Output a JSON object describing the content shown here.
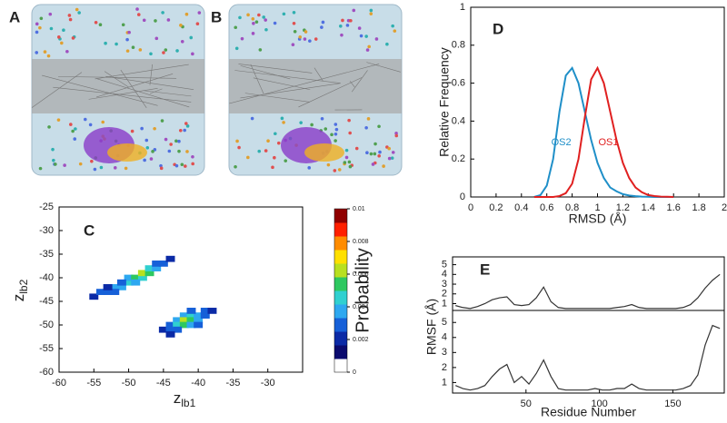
{
  "images": [
    {
      "label": "A"
    },
    {
      "label": "B"
    }
  ],
  "chart_data": [
    {
      "type": "line",
      "label": "D",
      "x_label": "RMSD (Å)",
      "y_label": "Relative Frequency",
      "xlim": [
        0,
        2
      ],
      "xticks": [
        0,
        0.2,
        0.4,
        0.6,
        0.8,
        1,
        1.2,
        1.4,
        1.6,
        1.8,
        2
      ],
      "ylim": [
        0,
        1
      ],
      "yticks": [
        0,
        0.2,
        0.4,
        0.6,
        0.8,
        1
      ],
      "x": [
        0.5,
        0.55,
        0.6,
        0.65,
        0.7,
        0.75,
        0.8,
        0.85,
        0.9,
        0.95,
        1.0,
        1.05,
        1.1,
        1.15,
        1.2,
        1.25,
        1.3,
        1.35,
        1.4,
        1.45,
        1.5,
        1.55,
        1.6
      ],
      "series": [
        {
          "name": "OS2",
          "color": "#1f8fc8",
          "values": [
            0,
            0.01,
            0.06,
            0.2,
            0.45,
            0.64,
            0.68,
            0.6,
            0.45,
            0.3,
            0.18,
            0.1,
            0.05,
            0.03,
            0.015,
            0.008,
            0.004,
            0.002,
            0.001,
            0,
            0,
            0,
            0
          ]
        },
        {
          "name": "OS1",
          "color": "#e02020",
          "values": [
            0,
            0,
            0,
            0,
            0.005,
            0.02,
            0.07,
            0.2,
            0.42,
            0.62,
            0.68,
            0.6,
            0.45,
            0.3,
            0.18,
            0.1,
            0.05,
            0.025,
            0.01,
            0.005,
            0.002,
            0.001,
            0
          ]
        }
      ]
    },
    {
      "type": "heatmap",
      "label": "C",
      "x_label": "z",
      "x_label_sub": "lb1",
      "y_label": "z",
      "y_label_sub": "lb2",
      "xlim": [
        -60,
        -25
      ],
      "xticks": [
        -60,
        -55,
        -50,
        -45,
        -40,
        -35,
        -30
      ],
      "ylim": [
        -60,
        -25
      ],
      "yticks": [
        -25,
        -30,
        -35,
        -40,
        -45,
        -50,
        -55,
        -60
      ],
      "x": [
        -55,
        -54,
        -53,
        -52,
        -51,
        -50,
        -50,
        -49,
        -48,
        -48,
        -47,
        -47,
        -46,
        -45,
        -44,
        -52,
        -49,
        -46,
        -51,
        -53,
        -45,
        -44,
        -44,
        -43,
        -43,
        -42,
        -42,
        -42,
        -41,
        -41,
        -41,
        -40,
        -40,
        -39,
        -39,
        -38,
        -43,
        -40,
        -44,
        -41
      ],
      "y": [
        -44,
        -43,
        -43,
        -42,
        -42,
        -41,
        -40,
        -40,
        -40,
        -39,
        -39,
        -38,
        -38,
        -37,
        -36,
        -43,
        -41,
        -37,
        -41,
        -42,
        -51,
        -50,
        -51,
        -49,
        -50,
        -48,
        -49,
        -50,
        -48,
        -49,
        -50,
        -48,
        -49,
        -47,
        -48,
        -47,
        -51,
        -50,
        -52,
        -47
      ],
      "values": [
        0.001,
        0.002,
        0.002,
        0.003,
        0.003,
        0.004,
        0.003,
        0.005,
        0.004,
        0.006,
        0.005,
        0.004,
        0.003,
        0.002,
        0.001,
        0.002,
        0.003,
        0.002,
        0.002,
        0.001,
        0.001,
        0.002,
        0.002,
        0.003,
        0.004,
        0.003,
        0.006,
        0.005,
        0.004,
        0.005,
        0.003,
        0.003,
        0.003,
        0.002,
        0.002,
        0.001,
        0.002,
        0.002,
        0.001,
        0.002
      ],
      "colorbar": {
        "label": "Probability",
        "clim": [
          0,
          0.01
        ],
        "ticks": [
          0,
          0.002,
          0.004,
          0.006,
          0.008,
          0.01
        ],
        "colors": [
          "#ffffff",
          "#0a0a6e",
          "#0b2aa6",
          "#1660d8",
          "#2ea8f0",
          "#30d0d0",
          "#2ec860",
          "#b8e020",
          "#ffe000",
          "#ff8c00",
          "#ff2000",
          "#900000"
        ]
      }
    },
    {
      "type": "line",
      "label": "E",
      "y_label": "RMSF (Å)",
      "xlim": [
        0,
        185
      ],
      "ylim": [
        0.3,
        5.8
      ],
      "yticks": [
        1,
        2,
        3,
        4,
        5
      ],
      "x": [
        2,
        7,
        12,
        17,
        22,
        27,
        32,
        37,
        42,
        47,
        52,
        57,
        62,
        67,
        72,
        77,
        82,
        87,
        92,
        97,
        102,
        107,
        112,
        117,
        122,
        127,
        132,
        137,
        142,
        147,
        152,
        157,
        162,
        167,
        172,
        177,
        182
      ],
      "series": [
        {
          "color": "#333333",
          "values": [
            0.8,
            0.6,
            0.5,
            0.7,
            1.0,
            1.4,
            1.6,
            1.7,
            0.9,
            0.8,
            0.9,
            1.6,
            2.7,
            1.2,
            0.6,
            0.5,
            0.5,
            0.5,
            0.5,
            0.5,
            0.5,
            0.5,
            0.6,
            0.7,
            0.9,
            0.6,
            0.5,
            0.5,
            0.5,
            0.5,
            0.5,
            0.6,
            0.9,
            1.6,
            2.6,
            3.4,
            4.0
          ]
        }
      ]
    },
    {
      "type": "line",
      "x_label": "Residue Number",
      "xlim": [
        0,
        185
      ],
      "xticks": [
        50,
        100,
        150
      ],
      "ylim": [
        0.3,
        5.8
      ],
      "yticks": [
        1,
        2,
        3,
        4,
        5
      ],
      "x": [
        2,
        7,
        12,
        17,
        22,
        27,
        32,
        37,
        42,
        47,
        52,
        57,
        62,
        67,
        72,
        77,
        82,
        87,
        92,
        97,
        102,
        107,
        112,
        117,
        122,
        127,
        132,
        137,
        142,
        147,
        152,
        157,
        162,
        167,
        172,
        177,
        182
      ],
      "series": [
        {
          "color": "#333333",
          "values": [
            0.8,
            0.6,
            0.5,
            0.6,
            0.8,
            1.4,
            1.9,
            2.2,
            1.0,
            1.4,
            0.9,
            1.6,
            2.5,
            1.4,
            0.6,
            0.5,
            0.5,
            0.5,
            0.5,
            0.6,
            0.5,
            0.5,
            0.6,
            0.6,
            0.9,
            0.6,
            0.5,
            0.5,
            0.5,
            0.5,
            0.5,
            0.6,
            0.8,
            1.5,
            3.5,
            4.8,
            4.6
          ]
        }
      ]
    }
  ]
}
